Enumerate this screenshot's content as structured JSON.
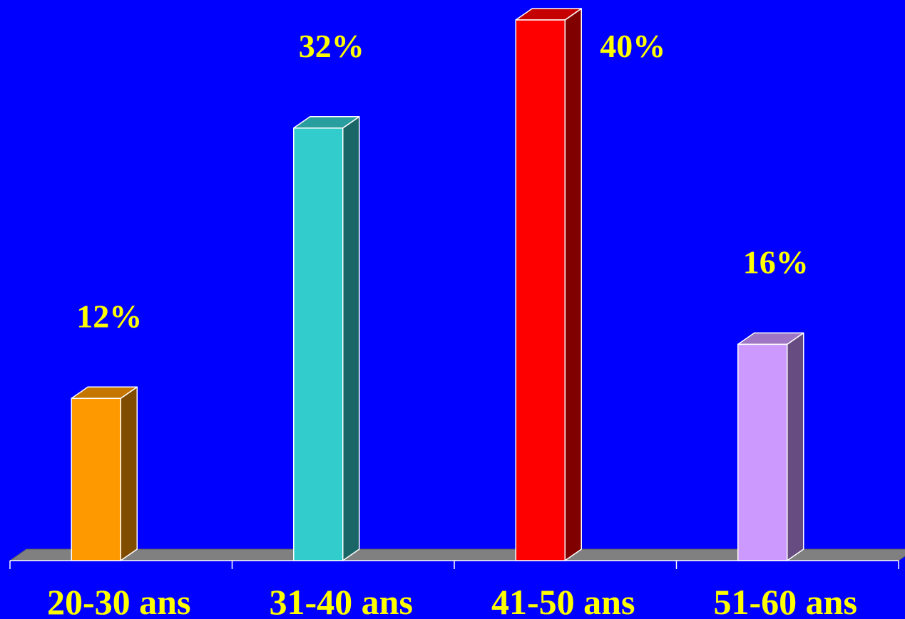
{
  "chart_data": {
    "type": "bar",
    "categories": [
      "20-30 ans",
      "31-40 ans",
      "41-50 ans",
      "51-60 ans"
    ],
    "values": [
      12,
      32,
      40,
      16
    ],
    "value_labels": [
      "12%",
      "32%",
      "40%",
      "16%"
    ],
    "ylim": [
      0,
      40
    ],
    "grid": false,
    "legend": "none",
    "style": "3d-column",
    "colors": {
      "background": "#0000ff",
      "label": "#ffff00",
      "floor": "#808080",
      "axis": "#ffffff",
      "bars": [
        {
          "front": "#ff9900",
          "top": "#c47600",
          "side": "#804c00"
        },
        {
          "front": "#33cccc",
          "top": "#289e9e",
          "side": "#1a6666"
        },
        {
          "front": "#ff0000",
          "top": "#c40000",
          "side": "#800000"
        },
        {
          "front": "#cc99ff",
          "top": "#9e76c4",
          "side": "#664c80"
        }
      ]
    }
  }
}
